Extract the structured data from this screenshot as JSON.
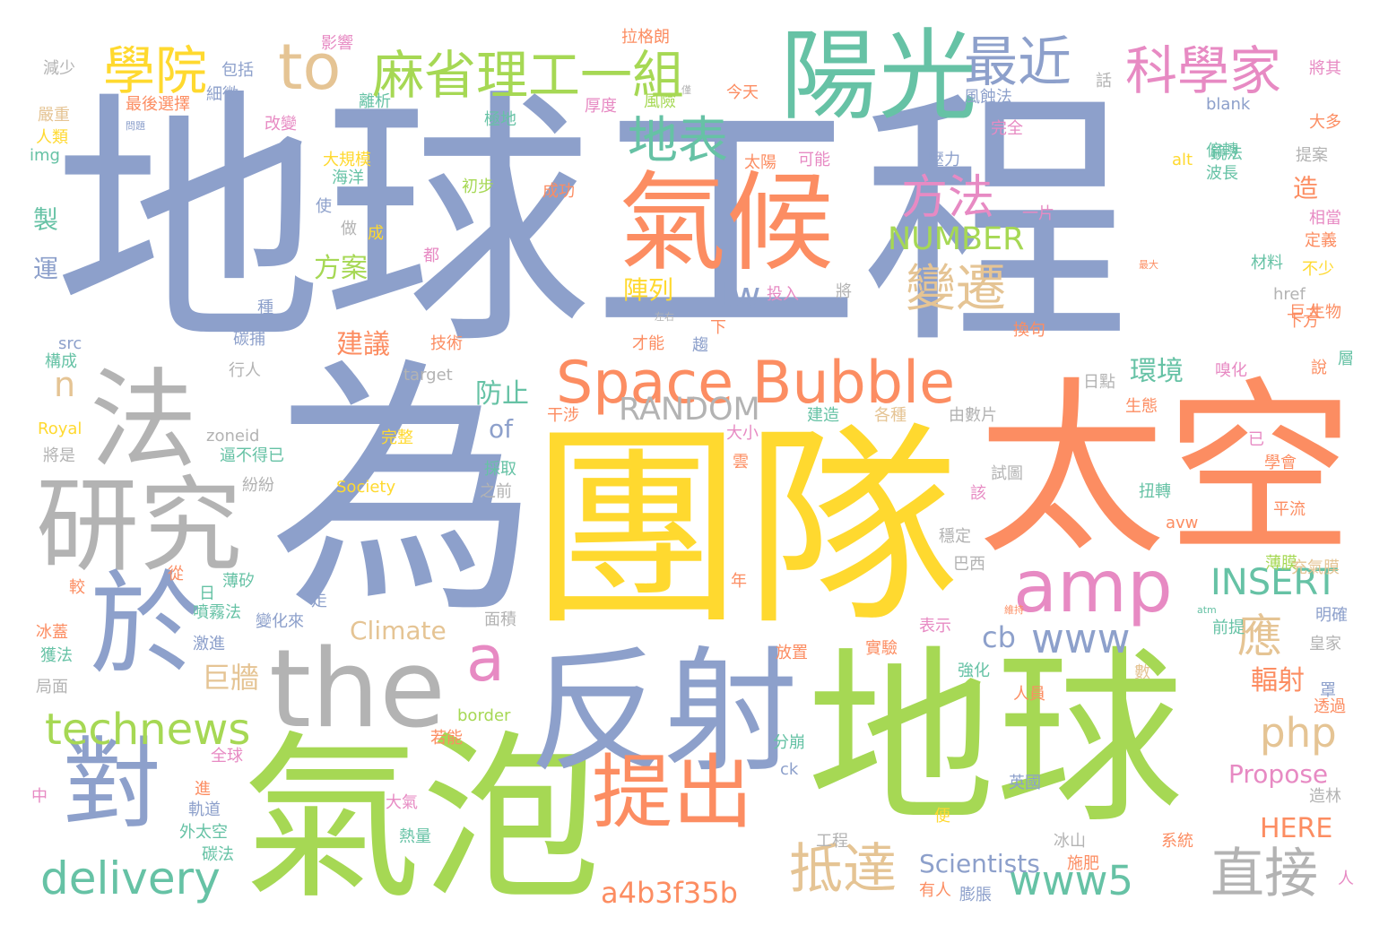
{
  "palette": {
    "blue": "#8da0cb",
    "orange": "#fc8d62",
    "yellow": "#ffd92f",
    "green": "#a6d854",
    "teal": "#66c2a5",
    "gray": "#b3b3b3",
    "pink": "#e78ac3",
    "tan": "#e5c494"
  },
  "words": [
    {
      "text": "地球工程",
      "color": "#8da0cb"
    },
    {
      "text": "為",
      "color": "#8da0cb"
    },
    {
      "text": "團隊",
      "color": "#ffd92f"
    },
    {
      "text": "太空",
      "color": "#fc8d62"
    },
    {
      "text": "地球",
      "color": "#a6d854"
    },
    {
      "text": "氣泡",
      "color": "#a6d854"
    },
    {
      "text": "反射",
      "color": "#8da0cb"
    },
    {
      "text": "the",
      "color": "#b3b3b3"
    },
    {
      "text": "氣候",
      "color": "#fc8d62"
    },
    {
      "text": "陽光",
      "color": "#66c2a5"
    },
    {
      "text": "法",
      "color": "#b3b3b3"
    },
    {
      "text": "研究",
      "color": "#b3b3b3"
    },
    {
      "text": "於",
      "color": "#8da0cb"
    },
    {
      "text": "對",
      "color": "#8da0cb"
    },
    {
      "text": "amp",
      "color": "#e78ac3"
    },
    {
      "text": "Space Bubble",
      "color": "#fc8d62"
    },
    {
      "text": "提出",
      "color": "#fc8d62"
    },
    {
      "text": "to",
      "color": "#e5c494"
    },
    {
      "text": "麻省理工一組",
      "color": "#a6d854"
    },
    {
      "text": "學院",
      "color": "#ffd92f"
    },
    {
      "text": "最近",
      "color": "#8da0cb"
    },
    {
      "text": "科學家",
      "color": "#e78ac3"
    },
    {
      "text": "地表",
      "color": "#66c2a5"
    },
    {
      "text": "方法",
      "color": "#e78ac3"
    },
    {
      "text": "變遷",
      "color": "#e5c494"
    },
    {
      "text": "a",
      "color": "#e78ac3"
    },
    {
      "text": "technews",
      "color": "#a6d854"
    },
    {
      "text": "delivery",
      "color": "#66c2a5"
    },
    {
      "text": "抵達",
      "color": "#e5c494"
    },
    {
      "text": "www5",
      "color": "#66c2a5"
    },
    {
      "text": "直接",
      "color": "#b3b3b3"
    },
    {
      "text": "php",
      "color": "#e5c494"
    },
    {
      "text": "www",
      "color": "#8da0cb"
    },
    {
      "text": "應",
      "color": "#e5c494"
    },
    {
      "text": "INSERT",
      "color": "#66c2a5"
    },
    {
      "text": "RANDOM",
      "color": "#b3b3b3"
    },
    {
      "text": "NUMBER",
      "color": "#a6d854"
    },
    {
      "text": "a4b3f35b",
      "color": "#fc8d62"
    },
    {
      "text": "tw",
      "color": "#8da0cb"
    },
    {
      "text": "n",
      "color": "#e5c494"
    },
    {
      "text": "環境",
      "color": "#66c2a5"
    },
    {
      "text": "防止",
      "color": "#66c2a5"
    },
    {
      "text": "陣列",
      "color": "#ffd92f"
    },
    {
      "text": "方案",
      "color": "#a6d854"
    },
    {
      "text": "建議",
      "color": "#fc8d62"
    },
    {
      "text": "巨牆",
      "color": "#e5c494"
    },
    {
      "text": "Climate",
      "color": "#e5c494"
    },
    {
      "text": "cb",
      "color": "#8da0cb"
    },
    {
      "text": "輻射",
      "color": "#fc8d62"
    },
    {
      "text": "of",
      "color": "#8da0cb"
    },
    {
      "text": "Propose",
      "color": "#e78ac3"
    },
    {
      "text": "HERE",
      "color": "#fc8d62"
    },
    {
      "text": "Scientists",
      "color": "#8da0cb"
    },
    {
      "text": "製",
      "color": "#66c2a5"
    },
    {
      "text": "運",
      "color": "#8da0cb"
    },
    {
      "text": "造",
      "color": "#fc8d62"
    },
    {
      "text": "減少",
      "color": "#b3b3b3"
    },
    {
      "text": "包括",
      "color": "#8da0cb"
    },
    {
      "text": "影響",
      "color": "#e78ac3"
    },
    {
      "text": "拉格朗",
      "color": "#fc8d62"
    },
    {
      "text": "將其",
      "color": "#e78ac3"
    },
    {
      "text": "嚴重",
      "color": "#e5c494"
    },
    {
      "text": "細微",
      "color": "#8da0cb"
    },
    {
      "text": "離析",
      "color": "#66c2a5"
    },
    {
      "text": "風險",
      "color": "#a6d854"
    },
    {
      "text": "今天",
      "color": "#fc8d62"
    },
    {
      "text": "人類",
      "color": "#ffd92f"
    },
    {
      "text": "最後選擇",
      "color": "#fc8d62"
    },
    {
      "text": "極地",
      "color": "#66c2a5"
    },
    {
      "text": "厚度",
      "color": "#e78ac3"
    },
    {
      "text": "風蝕法",
      "color": "#8da0cb"
    },
    {
      "text": "話",
      "color": "#b3b3b3"
    },
    {
      "text": "blank",
      "color": "#8da0cb"
    },
    {
      "text": "大多",
      "color": "#fc8d62"
    },
    {
      "text": "問題",
      "color": "#8da0cb"
    },
    {
      "text": "改變",
      "color": "#e78ac3"
    },
    {
      "text": "完全",
      "color": "#e78ac3"
    },
    {
      "text": "img",
      "color": "#66c2a5"
    },
    {
      "text": "大規模",
      "color": "#ffd92f"
    },
    {
      "text": "太陽",
      "color": "#fc8d62"
    },
    {
      "text": "可能",
      "color": "#e78ac3"
    },
    {
      "text": "壓力",
      "color": "#8da0cb"
    },
    {
      "text": "偏轉",
      "color": "#66c2a5"
    },
    {
      "text": "鏡法",
      "color": "#66c2a5"
    },
    {
      "text": "提案",
      "color": "#b3b3b3"
    },
    {
      "text": "海洋",
      "color": "#66c2a5"
    },
    {
      "text": "alt",
      "color": "#ffd92f"
    },
    {
      "text": "波長",
      "color": "#66c2a5"
    },
    {
      "text": "初步",
      "color": "#a6d854"
    },
    {
      "text": "成功",
      "color": "#fc8d62"
    },
    {
      "text": "使",
      "color": "#8da0cb"
    },
    {
      "text": "一片",
      "color": "#e78ac3"
    },
    {
      "text": "相當",
      "color": "#e78ac3"
    },
    {
      "text": "做",
      "color": "#b3b3b3"
    },
    {
      "text": "成",
      "color": "#ffd92f"
    },
    {
      "text": "都",
      "color": "#e78ac3"
    },
    {
      "text": "定義",
      "color": "#fc8d62"
    },
    {
      "text": "材料",
      "color": "#66c2a5"
    },
    {
      "text": "不少",
      "color": "#ffd92f"
    },
    {
      "text": "投入",
      "color": "#e78ac3"
    },
    {
      "text": "將",
      "color": "#b3b3b3"
    },
    {
      "text": "href",
      "color": "#b3b3b3"
    },
    {
      "text": "種",
      "color": "#8da0cb"
    },
    {
      "text": "左右",
      "color": "#b3b3b3"
    },
    {
      "text": "巨大",
      "color": "#fc8d62"
    },
    {
      "text": "生物",
      "color": "#fc8d62"
    },
    {
      "text": "下",
      "color": "#fc8d62"
    },
    {
      "text": "換句",
      "color": "#fc8d62"
    },
    {
      "text": "下方",
      "color": "#fc8d62"
    },
    {
      "text": "碳捕",
      "color": "#8da0cb"
    },
    {
      "text": "才能",
      "color": "#fc8d62"
    },
    {
      "text": "趨",
      "color": "#8da0cb"
    },
    {
      "text": "技術",
      "color": "#fc8d62"
    },
    {
      "text": "src",
      "color": "#8da0cb"
    },
    {
      "text": "構成",
      "color": "#66c2a5"
    },
    {
      "text": "行人",
      "color": "#b3b3b3"
    },
    {
      "text": "target",
      "color": "#b3b3b3"
    },
    {
      "text": "日點",
      "color": "#b3b3b3"
    },
    {
      "text": "嗅化",
      "color": "#e78ac3"
    },
    {
      "text": "說",
      "color": "#fc8d62"
    },
    {
      "text": "層",
      "color": "#66c2a5"
    },
    {
      "text": "干涉",
      "color": "#fc8d62"
    },
    {
      "text": "建造",
      "color": "#66c2a5"
    },
    {
      "text": "各種",
      "color": "#e5c494"
    },
    {
      "text": "由數片",
      "color": "#b3b3b3"
    },
    {
      "text": "生態",
      "color": "#fc8d62"
    },
    {
      "text": "Royal",
      "color": "#ffd92f"
    },
    {
      "text": "zoneid",
      "color": "#b3b3b3"
    },
    {
      "text": "大小",
      "color": "#e78ac3"
    },
    {
      "text": "完整",
      "color": "#ffd92f"
    },
    {
      "text": "已",
      "color": "#e78ac3"
    },
    {
      "text": "將是",
      "color": "#b3b3b3"
    },
    {
      "text": "逼不得已",
      "color": "#66c2a5"
    },
    {
      "text": "雲",
      "color": "#fc8d62"
    },
    {
      "text": "採取",
      "color": "#66c2a5"
    },
    {
      "text": "試圖",
      "color": "#b3b3b3"
    },
    {
      "text": "學會",
      "color": "#fc8d62"
    },
    {
      "text": "Society",
      "color": "#ffd92f"
    },
    {
      "text": "之前",
      "color": "#b3b3b3"
    },
    {
      "text": "該",
      "color": "#e78ac3"
    },
    {
      "text": "扭轉",
      "color": "#66c2a5"
    },
    {
      "text": "紛紛",
      "color": "#b3b3b3"
    },
    {
      "text": "平流",
      "color": "#fc8d62"
    },
    {
      "text": "avw",
      "color": "#fc8d62"
    },
    {
      "text": "穩定",
      "color": "#b3b3b3"
    },
    {
      "text": "薄膜",
      "color": "#a6d854"
    },
    {
      "text": "充氣膜",
      "color": "#e5c494"
    },
    {
      "text": "從",
      "color": "#fc8d62"
    },
    {
      "text": "薄矽",
      "color": "#66c2a5"
    },
    {
      "text": "巴西",
      "color": "#b3b3b3"
    },
    {
      "text": "較",
      "color": "#fc8d62"
    },
    {
      "text": "日",
      "color": "#66c2a5"
    },
    {
      "text": "年",
      "color": "#fc8d62"
    },
    {
      "text": "噴霧法",
      "color": "#66c2a5"
    },
    {
      "text": "走",
      "color": "#8da0cb"
    },
    {
      "text": "atm",
      "color": "#66c2a5"
    },
    {
      "text": "變化來",
      "color": "#8da0cb"
    },
    {
      "text": "維持",
      "color": "#fc8d62"
    },
    {
      "text": "明確",
      "color": "#8da0cb"
    },
    {
      "text": "冰蓋",
      "color": "#fc8d62"
    },
    {
      "text": "面積",
      "color": "#b3b3b3"
    },
    {
      "text": "表示",
      "color": "#e78ac3"
    },
    {
      "text": "前提",
      "color": "#66c2a5"
    },
    {
      "text": "激進",
      "color": "#8da0cb"
    },
    {
      "text": "放置",
      "color": "#fc8d62"
    },
    {
      "text": "實驗",
      "color": "#fc8d62"
    },
    {
      "text": "皇家",
      "color": "#b3b3b3"
    },
    {
      "text": "獲法",
      "color": "#66c2a5"
    },
    {
      "text": "局面",
      "color": "#b3b3b3"
    },
    {
      "text": "強化",
      "color": "#66c2a5"
    },
    {
      "text": "數",
      "color": "#e5c494"
    },
    {
      "text": "罩",
      "color": "#8da0cb"
    },
    {
      "text": "人員",
      "color": "#fc8d62"
    },
    {
      "text": "透過",
      "color": "#fc8d62"
    },
    {
      "text": "border",
      "color": "#a6d854"
    },
    {
      "text": "若能",
      "color": "#fc8d62"
    },
    {
      "text": "分崩",
      "color": "#66c2a5"
    },
    {
      "text": "全球",
      "color": "#e78ac3"
    },
    {
      "text": "ck",
      "color": "#8da0cb"
    },
    {
      "text": "英國",
      "color": "#8da0cb"
    },
    {
      "text": "中",
      "color": "#e78ac3"
    },
    {
      "text": "進",
      "color": "#fc8d62"
    },
    {
      "text": "造林",
      "color": "#b3b3b3"
    },
    {
      "text": "軌道",
      "color": "#8da0cb"
    },
    {
      "text": "大氣",
      "color": "#e78ac3"
    },
    {
      "text": "便",
      "color": "#ffd92f"
    },
    {
      "text": "外太空",
      "color": "#66c2a5"
    },
    {
      "text": "熱量",
      "color": "#66c2a5"
    },
    {
      "text": "工程",
      "color": "#b3b3b3"
    },
    {
      "text": "冰山",
      "color": "#b3b3b3"
    },
    {
      "text": "系統",
      "color": "#fc8d62"
    },
    {
      "text": "碳法",
      "color": "#66c2a5"
    },
    {
      "text": "施肥",
      "color": "#fc8d62"
    },
    {
      "text": "有人",
      "color": "#fc8d62"
    },
    {
      "text": "膨脹",
      "color": "#8da0cb"
    },
    {
      "text": "人",
      "color": "#e78ac3"
    },
    {
      "text": "最大",
      "color": "#fc8d62"
    },
    {
      "text": "僅",
      "color": "#b3b3b3"
    }
  ]
}
